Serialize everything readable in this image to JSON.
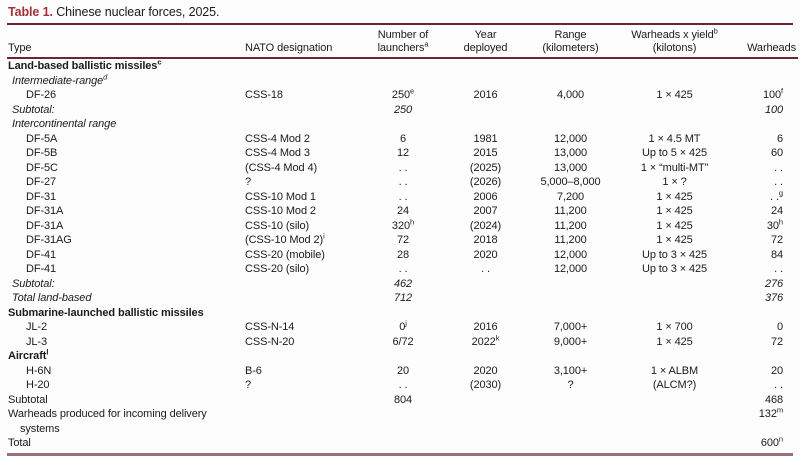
{
  "title": {
    "label": "Table 1.",
    "text": "Chinese nuclear forces, 2025."
  },
  "colors": {
    "accent_red": "#a1323a",
    "rule_dark": "#6f252d",
    "rule_bottom": "#9b7076",
    "text": "#1b1b1b",
    "background": "#fdfdfd"
  },
  "table": {
    "columns": [
      {
        "key": "type",
        "label": "Type",
        "align": "left"
      },
      {
        "key": "nato",
        "label": "NATO designation",
        "align": "left"
      },
      {
        "key": "launchers",
        "label": "Number of\nlaunchers^a",
        "align": "center"
      },
      {
        "key": "year",
        "label": "Year\ndeployed",
        "align": "center"
      },
      {
        "key": "range",
        "label": "Range\n(kilometers)",
        "align": "center"
      },
      {
        "key": "yield",
        "label": "Warheads x yield^b\n(kilotons)",
        "align": "center"
      },
      {
        "key": "warheads",
        "label": "Warheads",
        "align": "right"
      }
    ],
    "rows": [
      {
        "style": "section",
        "cells": [
          "Land-based ballistic missiles^c",
          "",
          "",
          "",
          "",
          "",
          ""
        ]
      },
      {
        "style": "subhead",
        "cells": [
          "Intermediate-range^d",
          "",
          "",
          "",
          "",
          "",
          ""
        ]
      },
      {
        "style": "data",
        "cells": [
          "DF-26",
          "CSS-18",
          "250^e",
          "2016",
          "4,000",
          "1 × 425",
          "100^f"
        ]
      },
      {
        "style": "subtotal",
        "cells": [
          "Subtotal:",
          "",
          "250",
          "",
          "",
          "",
          "100"
        ]
      },
      {
        "style": "subhead",
        "cells": [
          "Intercontinental range",
          "",
          "",
          "",
          "",
          "",
          ""
        ]
      },
      {
        "style": "data",
        "cells": [
          "DF-5A",
          "CSS-4 Mod 2",
          "6",
          "1981",
          "12,000",
          "1 × 4.5 MT",
          "6"
        ]
      },
      {
        "style": "data",
        "cells": [
          "DF-5B",
          "CSS-4 Mod 3",
          "12",
          "2015",
          "13,000",
          "Up to 5 × 425",
          "60"
        ]
      },
      {
        "style": "data",
        "cells": [
          "DF-5C",
          "(CSS-4 Mod 4)",
          ". .",
          "(2025)",
          "13,000",
          "1 × “multi-MT”",
          ". ."
        ]
      },
      {
        "style": "data",
        "cells": [
          "DF-27",
          "?",
          ". .",
          "(2026)",
          "5,000–8,000",
          "1 × ?",
          ". ."
        ]
      },
      {
        "style": "data",
        "cells": [
          "DF-31",
          "CSS-10 Mod 1",
          ". .",
          "2006",
          "7,200",
          "1 × 425",
          ". .^g"
        ]
      },
      {
        "style": "data",
        "cells": [
          "DF-31A",
          "CSS-10 Mod 2",
          "24",
          "2007",
          "11,200",
          "1 × 425",
          "24"
        ]
      },
      {
        "style": "data",
        "cells": [
          "DF-31A",
          "CSS-10 (silo)",
          "320^h",
          "(2024)",
          "11,200",
          "1 × 425",
          "30^h"
        ]
      },
      {
        "style": "data",
        "cells": [
          "DF-31AG",
          "(CSS-10 Mod 2)^i",
          "72",
          "2018",
          "11,200",
          "1 × 425",
          "72"
        ]
      },
      {
        "style": "data",
        "cells": [
          "DF-41",
          "CSS-20 (mobile)",
          "28",
          "2020",
          "12,000",
          "Up to 3 × 425",
          "84"
        ]
      },
      {
        "style": "data",
        "cells": [
          "DF-41",
          "CSS-20 (silo)",
          ". .",
          ". .",
          "12,000",
          "Up to 3 × 425",
          ". ."
        ]
      },
      {
        "style": "subtotal",
        "cells": [
          "Subtotal:",
          "",
          "462",
          "",
          "",
          "",
          "276"
        ]
      },
      {
        "style": "subtotal",
        "cells": [
          "Total land-based",
          "",
          "712",
          "",
          "",
          "",
          "376"
        ]
      },
      {
        "style": "section",
        "cells": [
          "Submarine-launched ballistic missiles",
          "",
          "",
          "",
          "",
          "",
          ""
        ]
      },
      {
        "style": "data",
        "cells": [
          "JL-2",
          "CSS-N-14",
          "0^j",
          "2016",
          "7,000+",
          "1 × 700",
          "0"
        ]
      },
      {
        "style": "data",
        "cells": [
          "JL-3",
          "CSS-N-20",
          "6/72",
          "2022^k",
          "9,000+",
          "1 × 425",
          "72"
        ]
      },
      {
        "style": "section",
        "cells": [
          "Aircraft^l",
          "",
          "",
          "",
          "",
          "",
          ""
        ]
      },
      {
        "style": "data",
        "cells": [
          "H-6N",
          "B-6",
          "20",
          "2020",
          "3,100+",
          "1 × ALBM",
          "20"
        ]
      },
      {
        "style": "data",
        "cells": [
          "H-20",
          "?",
          ". .",
          "(2030)",
          "?",
          "(ALCM?)",
          ". ."
        ]
      },
      {
        "style": "bold",
        "cells": [
          "Subtotal",
          "",
          "804",
          "",
          "",
          "",
          "468"
        ]
      },
      {
        "style": "plain",
        "cells": [
          "Warheads produced for incoming delivery systems",
          "",
          "",
          "",
          "",
          "",
          "132^m"
        ]
      },
      {
        "style": "bold",
        "cells": [
          "Total",
          "",
          "",
          "",
          "",
          "",
          "600^n"
        ]
      }
    ]
  }
}
